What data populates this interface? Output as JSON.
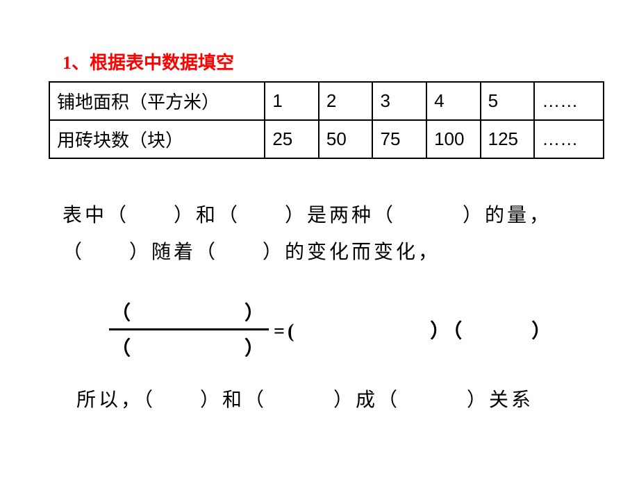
{
  "title": "1、根据表中数据填空",
  "table": {
    "row1": {
      "label": "铺地面积（平方米）",
      "c1": "1",
      "c2": "2",
      "c3": "3",
      "c4": "4",
      "c5": "5",
      "c6": "……"
    },
    "row2": {
      "label": "用砖块数（块）",
      "c1": "25",
      "c2": "50",
      "c3": "75",
      "c4": "100",
      "c5": "125",
      "c6": "……"
    }
  },
  "paragraph": "表中（　　）和（　　）是两种（　　　）的量，（　　）随着（　　）的变化而变化，",
  "fraction": {
    "top": "（　　　　　）",
    "bottom": "（　　　　　）",
    "right": "=(　　　　　　）（　　　）"
  },
  "conclusion": "所以，（　　）和（　　　）成（　　　）关系",
  "colors": {
    "title_color": "#ff0000",
    "text_color": "#000000",
    "background": "#ffffff",
    "border": "#000000"
  },
  "fonts": {
    "title_size": 26,
    "body_size": 28,
    "cell_size": 26
  }
}
